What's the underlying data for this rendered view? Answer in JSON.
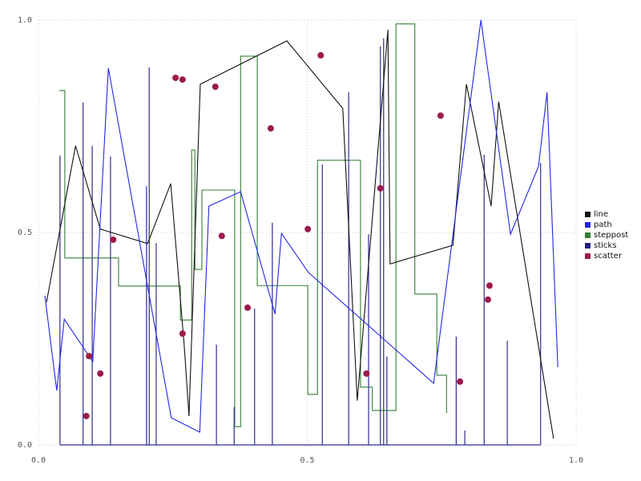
{
  "figure": {
    "background": "#ffffff"
  },
  "axes": {
    "xlim": [
      0,
      1
    ],
    "ylim": [
      0,
      1
    ],
    "x_tick_labels": [
      "0.0",
      "0.5",
      "1.0"
    ],
    "x_tick_values": [
      0,
      0.5,
      1
    ],
    "y_tick_labels": [
      "0.0",
      "0.5",
      "1.0"
    ],
    "y_tick_values": [
      0,
      0.5,
      1
    ],
    "grid": true,
    "grid_color": "#c9c9d4",
    "tick_label_color": "#555555"
  },
  "legend": {
    "position": "right-center",
    "items": [
      {
        "label": "line",
        "color": "#111111"
      },
      {
        "label": "path",
        "color": "#2525e6"
      },
      {
        "label": "steppost",
        "color": "#338033"
      },
      {
        "label": "sticks",
        "color": "#22227a"
      },
      {
        "label": "scatter",
        "color": "#9c1a4c"
      }
    ]
  },
  "chart_data": {
    "type": "mixed",
    "title": "",
    "xlabel": "",
    "ylabel": "",
    "series": [
      {
        "name": "line",
        "type": "line",
        "color": "#111111",
        "x": [
          0.015,
          0.069,
          0.115,
          0.203,
          0.246,
          0.271,
          0.28,
          0.301,
          0.462,
          0.566,
          0.593,
          0.65,
          0.654,
          0.771,
          0.796,
          0.842,
          0.856,
          0.958
        ],
        "y": [
          0.336,
          0.704,
          0.508,
          0.474,
          0.615,
          0.236,
          0.068,
          0.849,
          0.951,
          0.792,
          0.104,
          0.977,
          0.426,
          0.47,
          0.849,
          0.562,
          0.808,
          0.015
        ]
      },
      {
        "name": "path",
        "type": "line",
        "color": "#2525e6",
        "x": [
          0.012,
          0.034,
          0.048,
          0.101,
          0.13,
          0.247,
          0.3,
          0.317,
          0.376,
          0.44,
          0.452,
          0.502,
          0.735,
          0.823,
          0.878,
          0.93,
          0.946,
          0.966
        ],
        "y": [
          0.351,
          0.128,
          0.296,
          0.196,
          0.887,
          0.064,
          0.03,
          0.562,
          0.596,
          0.308,
          0.498,
          0.406,
          0.145,
          1.0,
          0.496,
          0.655,
          0.83,
          0.183
        ]
      },
      {
        "name": "steppost",
        "type": "step-post",
        "color": "#338033",
        "x": [
          0.039,
          0.049,
          0.149,
          0.264,
          0.285,
          0.291,
          0.304,
          0.365,
          0.376,
          0.407,
          0.501,
          0.519,
          0.599,
          0.621,
          0.665,
          0.7,
          0.741,
          0.759
        ],
        "y": [
          0.834,
          0.44,
          0.374,
          0.294,
          0.694,
          0.413,
          0.6,
          0.043,
          0.915,
          0.375,
          0.119,
          0.67,
          0.136,
          0.081,
          0.991,
          0.355,
          0.164,
          0.075
        ]
      },
      {
        "name": "sticks",
        "type": "sticks",
        "color": "#2d2d8f",
        "baseline": 0,
        "x": [
          0.04,
          0.083,
          0.1,
          0.134,
          0.201,
          0.206,
          0.219,
          0.331,
          0.364,
          0.402,
          0.435,
          0.528,
          0.577,
          0.614,
          0.636,
          0.642,
          0.648,
          0.777,
          0.793,
          0.829,
          0.872,
          0.934
        ],
        "y": [
          0.681,
          0.806,
          0.704,
          0.679,
          0.609,
          0.889,
          0.475,
          0.236,
          0.089,
          0.321,
          0.523,
          0.66,
          0.83,
          0.496,
          0.938,
          0.957,
          0.208,
          0.255,
          0.034,
          0.683,
          0.245,
          0.664
        ]
      },
      {
        "name": "scatter",
        "type": "scatter",
        "color": "#9c1a4c",
        "marker_radius": 4,
        "x": [
          0.255,
          0.268,
          0.329,
          0.432,
          0.525,
          0.636,
          0.748,
          0.139,
          0.341,
          0.501,
          0.389,
          0.268,
          0.839,
          0.836,
          0.094,
          0.115,
          0.089,
          0.61,
          0.784
        ],
        "y": [
          0.864,
          0.86,
          0.843,
          0.745,
          0.917,
          0.604,
          0.775,
          0.483,
          0.492,
          0.508,
          0.323,
          0.262,
          0.375,
          0.342,
          0.209,
          0.168,
          0.068,
          0.168,
          0.149
        ]
      }
    ]
  }
}
